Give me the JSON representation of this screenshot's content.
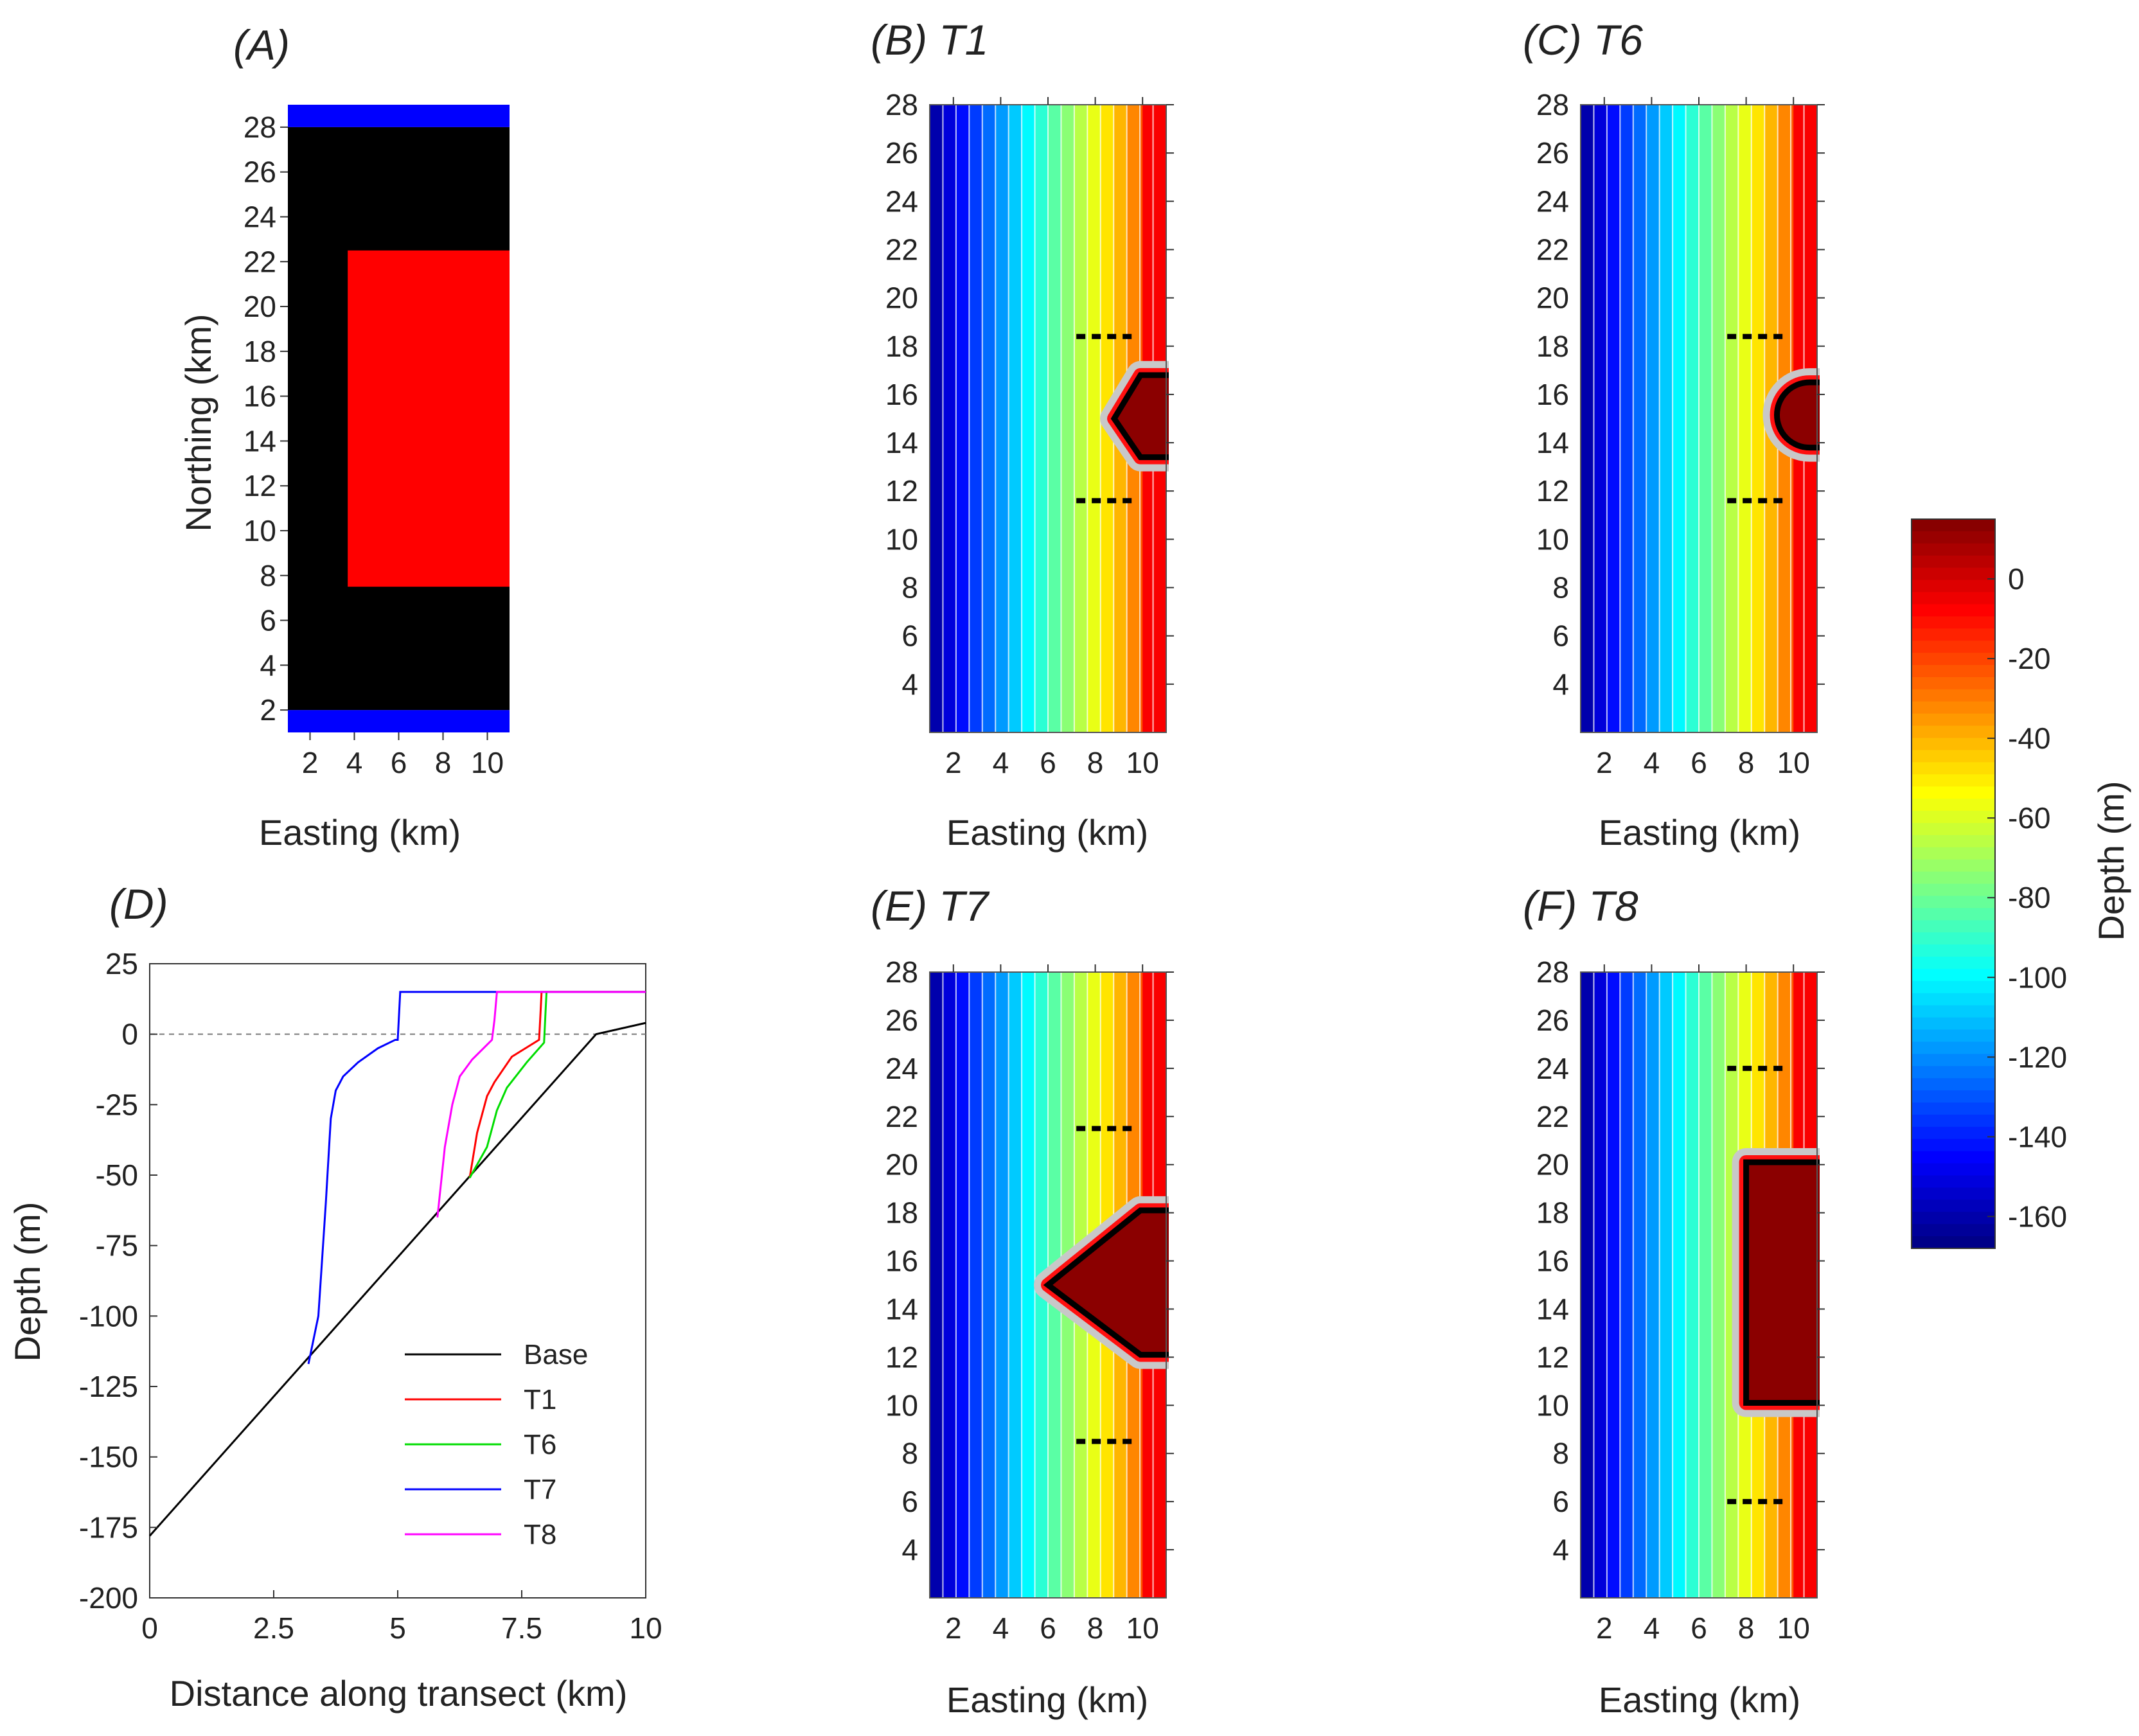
{
  "colors": {
    "blue": "#0000ff",
    "black": "#000000",
    "red": "#ff0000",
    "darkred": "#8b0000",
    "T1": "#ff0000",
    "T6": "#00dd00",
    "T7": "#0000ff",
    "T8": "#ff00ff",
    "base": "#000000"
  },
  "panels": {
    "A": {
      "title": "(A)",
      "xlabel": "Easting (km)",
      "ylabel": "Northing (km)"
    },
    "B": {
      "title": "(B) T1",
      "xlabel": "Easting (km)"
    },
    "C": {
      "title": "(C) T6",
      "xlabel": "Easting (km)"
    },
    "D": {
      "title": "(D)",
      "xlabel": "Distance along transect (km)",
      "ylabel": "Depth (m)"
    },
    "E": {
      "title": "(E) T7",
      "xlabel": "Easting (km)"
    },
    "F": {
      "title": "(F) T8",
      "xlabel": "Easting (km)"
    }
  },
  "colorbar": {
    "label": "Depth (m)",
    "ticks": [
      "0",
      "-20",
      "-40",
      "-60",
      "-80",
      "-100",
      "-120",
      "-140",
      "-160"
    ]
  },
  "chart_data": [
    {
      "id": "A",
      "type": "heatmap",
      "title": "(A)",
      "xlabel": "Easting (km)",
      "ylabel": "Northing (km)",
      "xlim": [
        1,
        11
      ],
      "ylim": [
        1,
        29
      ],
      "xticks": [
        2,
        4,
        6,
        8,
        10
      ],
      "yticks": [
        2,
        4,
        6,
        8,
        10,
        12,
        14,
        16,
        18,
        20,
        22,
        24,
        26,
        28
      ],
      "regions": [
        {
          "color": "blue",
          "x": [
            1,
            11
          ],
          "y": [
            28,
            29
          ]
        },
        {
          "color": "blue",
          "x": [
            1,
            11
          ],
          "y": [
            1,
            2
          ]
        },
        {
          "color": "black",
          "x": [
            1,
            11
          ],
          "y": [
            2,
            28
          ]
        },
        {
          "color": "red",
          "x": [
            3.7,
            11
          ],
          "y": [
            7.5,
            22.5
          ]
        }
      ]
    },
    {
      "id": "B",
      "type": "heatmap",
      "title": "(B) T1",
      "xlabel": "Easting (km)",
      "xlim": [
        1,
        11
      ],
      "ylim": [
        2,
        28
      ],
      "xticks": [
        2,
        4,
        6,
        8,
        10
      ],
      "yticks": [
        4,
        6,
        8,
        10,
        12,
        14,
        16,
        18,
        20,
        22,
        24,
        26,
        28
      ],
      "transect_lines_y": [
        18.4,
        11.6
      ],
      "structure": {
        "shape": "chevron",
        "y_top": 16.8,
        "y_bottom": 13.4,
        "x_tip": 8.8,
        "y_tip": 15.0
      }
    },
    {
      "id": "C",
      "type": "heatmap",
      "title": "(C) T6",
      "xlabel": "Easting (km)",
      "xlim": [
        1,
        11
      ],
      "ylim": [
        2,
        28
      ],
      "xticks": [
        2,
        4,
        6,
        8,
        10
      ],
      "yticks": [
        4,
        6,
        8,
        10,
        12,
        14,
        16,
        18,
        20,
        22,
        24,
        26,
        28
      ],
      "transect_lines_y": [
        18.4,
        11.6
      ],
      "structure": {
        "shape": "semicircle",
        "y_top": 16.5,
        "y_bottom": 13.8,
        "x_tip": 9.3,
        "y_tip": 15.1
      }
    },
    {
      "id": "D",
      "type": "line",
      "title": "(D)",
      "xlabel": "Distance along transect (km)",
      "ylabel": "Depth (m)",
      "xlim": [
        0,
        10
      ],
      "ylim": [
        -200,
        25
      ],
      "xticks": [
        "0",
        "2.5",
        "5",
        "7.5",
        "10"
      ],
      "yticks": [
        "25",
        "0",
        "-25",
        "-50",
        "-75",
        "-100",
        "-125",
        "-150",
        "-175",
        "-200"
      ],
      "reference_line_y": 0,
      "series": [
        {
          "name": "Base",
          "color": "base",
          "x": [
            0,
            9,
            10
          ],
          "y": [
            -178,
            0,
            4
          ]
        },
        {
          "name": "T1",
          "color": "T1",
          "x": [
            6.45,
            6.6,
            6.8,
            6.95,
            7.3,
            7.85,
            7.88,
            7.9,
            10
          ],
          "y": [
            -51,
            -35,
            -22,
            -17,
            -8,
            -2,
            8,
            15,
            15
          ]
        },
        {
          "name": "T6",
          "color": "T6",
          "x": [
            6.45,
            6.8,
            7.0,
            7.2,
            7.6,
            7.95,
            7.98,
            8.0,
            10
          ],
          "y": [
            -51,
            -40,
            -27,
            -19,
            -10,
            -3,
            8,
            15,
            15
          ]
        },
        {
          "name": "T7",
          "color": "T7",
          "x": [
            3.2,
            3.4,
            3.55,
            3.65,
            3.75,
            3.9,
            4.2,
            4.6,
            4.95,
            5.0,
            5.05,
            10
          ],
          "y": [
            -117,
            -100,
            -60,
            -30,
            -20,
            -15,
            -10,
            -5,
            -2,
            -2,
            15,
            15
          ]
        },
        {
          "name": "T8",
          "color": "T8",
          "x": [
            5.8,
            5.95,
            6.1,
            6.25,
            6.5,
            6.9,
            6.95,
            7.0,
            10
          ],
          "y": [
            -65,
            -40,
            -25,
            -15,
            -9,
            -2,
            5,
            15,
            15
          ]
        }
      ]
    },
    {
      "id": "E",
      "type": "heatmap",
      "title": "(E) T7",
      "xlabel": "Easting (km)",
      "xlim": [
        1,
        11
      ],
      "ylim": [
        2,
        28
      ],
      "xticks": [
        2,
        4,
        6,
        8,
        10
      ],
      "yticks": [
        4,
        6,
        8,
        10,
        12,
        14,
        16,
        18,
        20,
        22,
        24,
        26,
        28
      ],
      "transect_lines_y": [
        21.5,
        8.5
      ],
      "structure": {
        "shape": "chevron",
        "y_top": 18.1,
        "y_bottom": 12.1,
        "x_tip": 6.0,
        "y_tip": 15.0
      }
    },
    {
      "id": "F",
      "type": "heatmap",
      "title": "(F) T8",
      "xlabel": "Easting (km)",
      "xlim": [
        1,
        11
      ],
      "ylim": [
        2,
        28
      ],
      "xticks": [
        2,
        4,
        6,
        8,
        10
      ],
      "yticks": [
        4,
        6,
        8,
        10,
        12,
        14,
        16,
        18,
        20,
        22,
        24,
        26,
        28
      ],
      "transect_lines_y": [
        24.0,
        6.0
      ],
      "structure": {
        "shape": "rectangle",
        "y_top": 20.1,
        "y_bottom": 10.1,
        "x_tip": 8.0,
        "y_tip": 15.0
      }
    },
    {
      "id": "colorbar",
      "type": "heatmap",
      "label": "Depth (m)",
      "range": [
        -168,
        15
      ],
      "ticks": [
        0,
        -20,
        -40,
        -60,
        -80,
        -100,
        -120,
        -140,
        -160
      ],
      "colormap": "jet"
    }
  ]
}
